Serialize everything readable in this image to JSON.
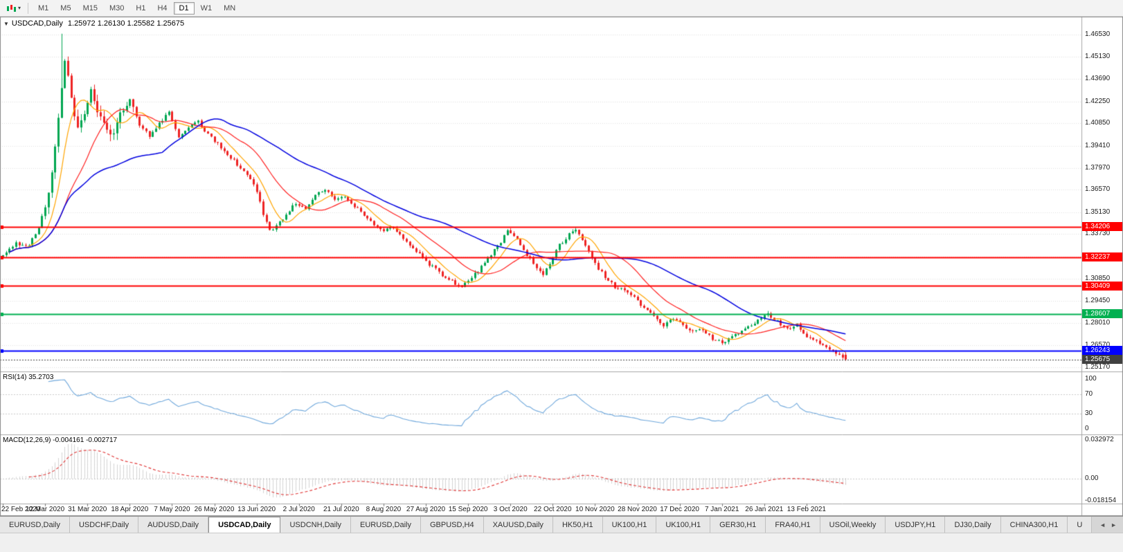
{
  "toolbar": {
    "timeframes": [
      "M1",
      "M5",
      "M15",
      "M30",
      "H1",
      "H4",
      "D1",
      "W1",
      "MN"
    ],
    "active_timeframe": "D1",
    "chart_type_icon": "candlestick-chart-icon",
    "dropdown_caret": "▾"
  },
  "chart_header": {
    "collapse_icon": "▼",
    "symbol": "USDCAD,Daily",
    "ohlc": "1.25972 1.26130 1.25582 1.25675"
  },
  "price_axis": {
    "labels": [
      "1.46530",
      "1.45130",
      "1.43690",
      "1.42250",
      "1.40850",
      "1.39410",
      "1.37970",
      "1.36570",
      "1.35130",
      "1.33730",
      "1.32290",
      "1.30850",
      "1.29450",
      "1.28010",
      "1.26570",
      "1.25170"
    ]
  },
  "levels": [
    {
      "label": "1.34206",
      "price": 1.34206,
      "color": "#FF0000",
      "width": 2,
      "style": "solid",
      "name": "resistance-line-1"
    },
    {
      "label": "1.32237",
      "price": 1.32237,
      "color": "#FF0000",
      "width": 2,
      "style": "solid",
      "name": "resistance-line-2"
    },
    {
      "label": "1.30409",
      "price": 1.30409,
      "color": "#FF0000",
      "width": 2,
      "style": "solid",
      "name": "resistance-line-3"
    },
    {
      "label": "1.28607",
      "price": 1.28607,
      "color": "#00B050",
      "width": 2,
      "style": "solid",
      "name": "support-line-green"
    },
    {
      "label": "1.26243",
      "price": 1.26243,
      "color": "#0000FF",
      "width": 2,
      "style": "solid",
      "name": "support-line-blue"
    },
    {
      "label": "1.25675",
      "price": 1.25675,
      "color": "#404040",
      "width": 1,
      "style": "dotted",
      "name": "current-price-line"
    }
  ],
  "rsi_panel": {
    "label": "RSI(14) 35.2703",
    "scale_labels": [
      {
        "text": "100",
        "value": 100
      },
      {
        "text": "70",
        "value": 70
      },
      {
        "text": "30",
        "value": 30
      },
      {
        "text": "0",
        "value": 0
      }
    ],
    "level_lines": [
      70,
      30
    ],
    "line_color": "#6FA8DC"
  },
  "macd_panel": {
    "label": "MACD(12,26,9) -0.004161 -0.002717",
    "scale_labels": [
      {
        "text": "0.032972",
        "value": 0.032972
      },
      {
        "text": "0.00",
        "value": 0
      },
      {
        "text": "-0.018154",
        "value": -0.018154
      }
    ],
    "histogram_color": "#A8A8A8",
    "signal_color": "#E03030"
  },
  "date_axis": [
    "22 Feb 2020",
    "12 Mar 2020",
    "31 Mar 2020",
    "18 Apr 2020",
    "7 May 2020",
    "26 May 2020",
    "13 Jun 2020",
    "2 Jul 2020",
    "21 Jul 2020",
    "8 Aug 2020",
    "27 Aug 2020",
    "15 Sep 2020",
    "3 Oct 2020",
    "22 Oct 2020",
    "10 Nov 2020",
    "28 Nov 2020",
    "17 Dec 2020",
    "7 Jan 2021",
    "26 Jan 2021",
    "13 Feb 2021"
  ],
  "tabbar": {
    "tabs": [
      "EURUSD,Daily",
      "USDCHF,Daily",
      "AUDUSD,Daily",
      "USDCAD,Daily",
      "USDCNH,Daily",
      "EURUSD,Daily",
      "GBPUSD,H4",
      "XAUUSD,Daily",
      "HK50,H1",
      "UK100,H1",
      "UK100,H1",
      "GER30,H1",
      "FRA40,H1",
      "USOil,Weekly",
      "USDJPY,H1",
      "DJ30,Daily",
      "CHINA300,H1",
      "U"
    ],
    "active_index": 3,
    "scroll_left": "◄",
    "scroll_right": "►"
  },
  "colors": {
    "bull_candle": "#00A651",
    "bear_candle": "#EE2222",
    "ma_fast": "#FFA500",
    "ma_medium": "#FF2020",
    "ma_slow": "#0000E0",
    "grid": "#DEDEDE"
  },
  "chart_data": {
    "type": "candlestick",
    "symbol": "USDCAD",
    "timeframe": "Daily",
    "candle_count": 260,
    "price_range_visible": [
      1.249,
      1.477
    ],
    "last_candle": {
      "open": 1.25972,
      "high": 1.2613,
      "low": 1.25582,
      "close": 1.25675
    },
    "spike_high": {
      "index": 18,
      "price": 1.466
    },
    "ma_periods": {
      "fast": 8,
      "medium": 20,
      "slow": 50
    },
    "rsi_period": 14,
    "rsi_current": 35.2703,
    "macd_params": [
      12,
      26,
      9
    ],
    "macd_current": -0.004161,
    "macd_signal_current": -0.002717,
    "anchor_points": [
      [
        0,
        1.3245
      ],
      [
        4,
        1.331
      ],
      [
        8,
        1.33
      ],
      [
        11,
        1.342
      ],
      [
        13,
        1.356
      ],
      [
        15,
        1.376
      ],
      [
        17,
        1.412
      ],
      [
        19,
        1.45
      ],
      [
        21,
        1.423
      ],
      [
        23,
        1.404
      ],
      [
        25,
        1.416
      ],
      [
        27,
        1.43
      ],
      [
        30,
        1.412
      ],
      [
        33,
        1.399
      ],
      [
        36,
        1.415
      ],
      [
        39,
        1.422
      ],
      [
        42,
        1.408
      ],
      [
        45,
        1.4
      ],
      [
        48,
        1.409
      ],
      [
        51,
        1.415
      ],
      [
        54,
        1.399
      ],
      [
        57,
        1.406
      ],
      [
        60,
        1.41
      ],
      [
        63,
        1.401
      ],
      [
        66,
        1.395
      ],
      [
        69,
        1.389
      ],
      [
        72,
        1.382
      ],
      [
        75,
        1.376
      ],
      [
        78,
        1.365
      ],
      [
        80,
        1.35
      ],
      [
        82,
        1.34
      ],
      [
        84,
        1.342
      ],
      [
        87,
        1.35
      ],
      [
        90,
        1.357
      ],
      [
        93,
        1.354
      ],
      [
        96,
        1.362
      ],
      [
        99,
        1.366
      ],
      [
        102,
        1.359
      ],
      [
        105,
        1.361
      ],
      [
        108,
        1.355
      ],
      [
        111,
        1.35
      ],
      [
        114,
        1.343
      ],
      [
        117,
        1.339
      ],
      [
        120,
        1.342
      ],
      [
        123,
        1.334
      ],
      [
        126,
        1.328
      ],
      [
        129,
        1.322
      ],
      [
        132,
        1.316
      ],
      [
        135,
        1.311
      ],
      [
        138,
        1.307
      ],
      [
        141,
        1.303
      ],
      [
        144,
        1.309
      ],
      [
        147,
        1.316
      ],
      [
        150,
        1.324
      ],
      [
        153,
        1.332
      ],
      [
        155,
        1.34
      ],
      [
        157,
        1.336
      ],
      [
        160,
        1.327
      ],
      [
        163,
        1.318
      ],
      [
        166,
        1.312
      ],
      [
        168,
        1.318
      ],
      [
        171,
        1.33
      ],
      [
        174,
        1.337
      ],
      [
        176,
        1.339
      ],
      [
        179,
        1.33
      ],
      [
        182,
        1.318
      ],
      [
        185,
        1.31
      ],
      [
        188,
        1.303
      ],
      [
        191,
        1.301
      ],
      [
        194,
        1.296
      ],
      [
        197,
        1.29
      ],
      [
        200,
        1.284
      ],
      [
        203,
        1.279
      ],
      [
        206,
        1.283
      ],
      [
        209,
        1.278
      ],
      [
        212,
        1.274
      ],
      [
        215,
        1.276
      ],
      [
        218,
        1.27
      ],
      [
        221,
        1.267
      ],
      [
        224,
        1.271
      ],
      [
        227,
        1.275
      ],
      [
        230,
        1.279
      ],
      [
        233,
        1.283
      ],
      [
        235,
        1.286
      ],
      [
        238,
        1.281
      ],
      [
        241,
        1.276
      ],
      [
        244,
        1.279
      ],
      [
        247,
        1.272
      ],
      [
        250,
        1.268
      ],
      [
        253,
        1.265
      ],
      [
        256,
        1.261
      ],
      [
        259,
        1.25675
      ]
    ]
  }
}
